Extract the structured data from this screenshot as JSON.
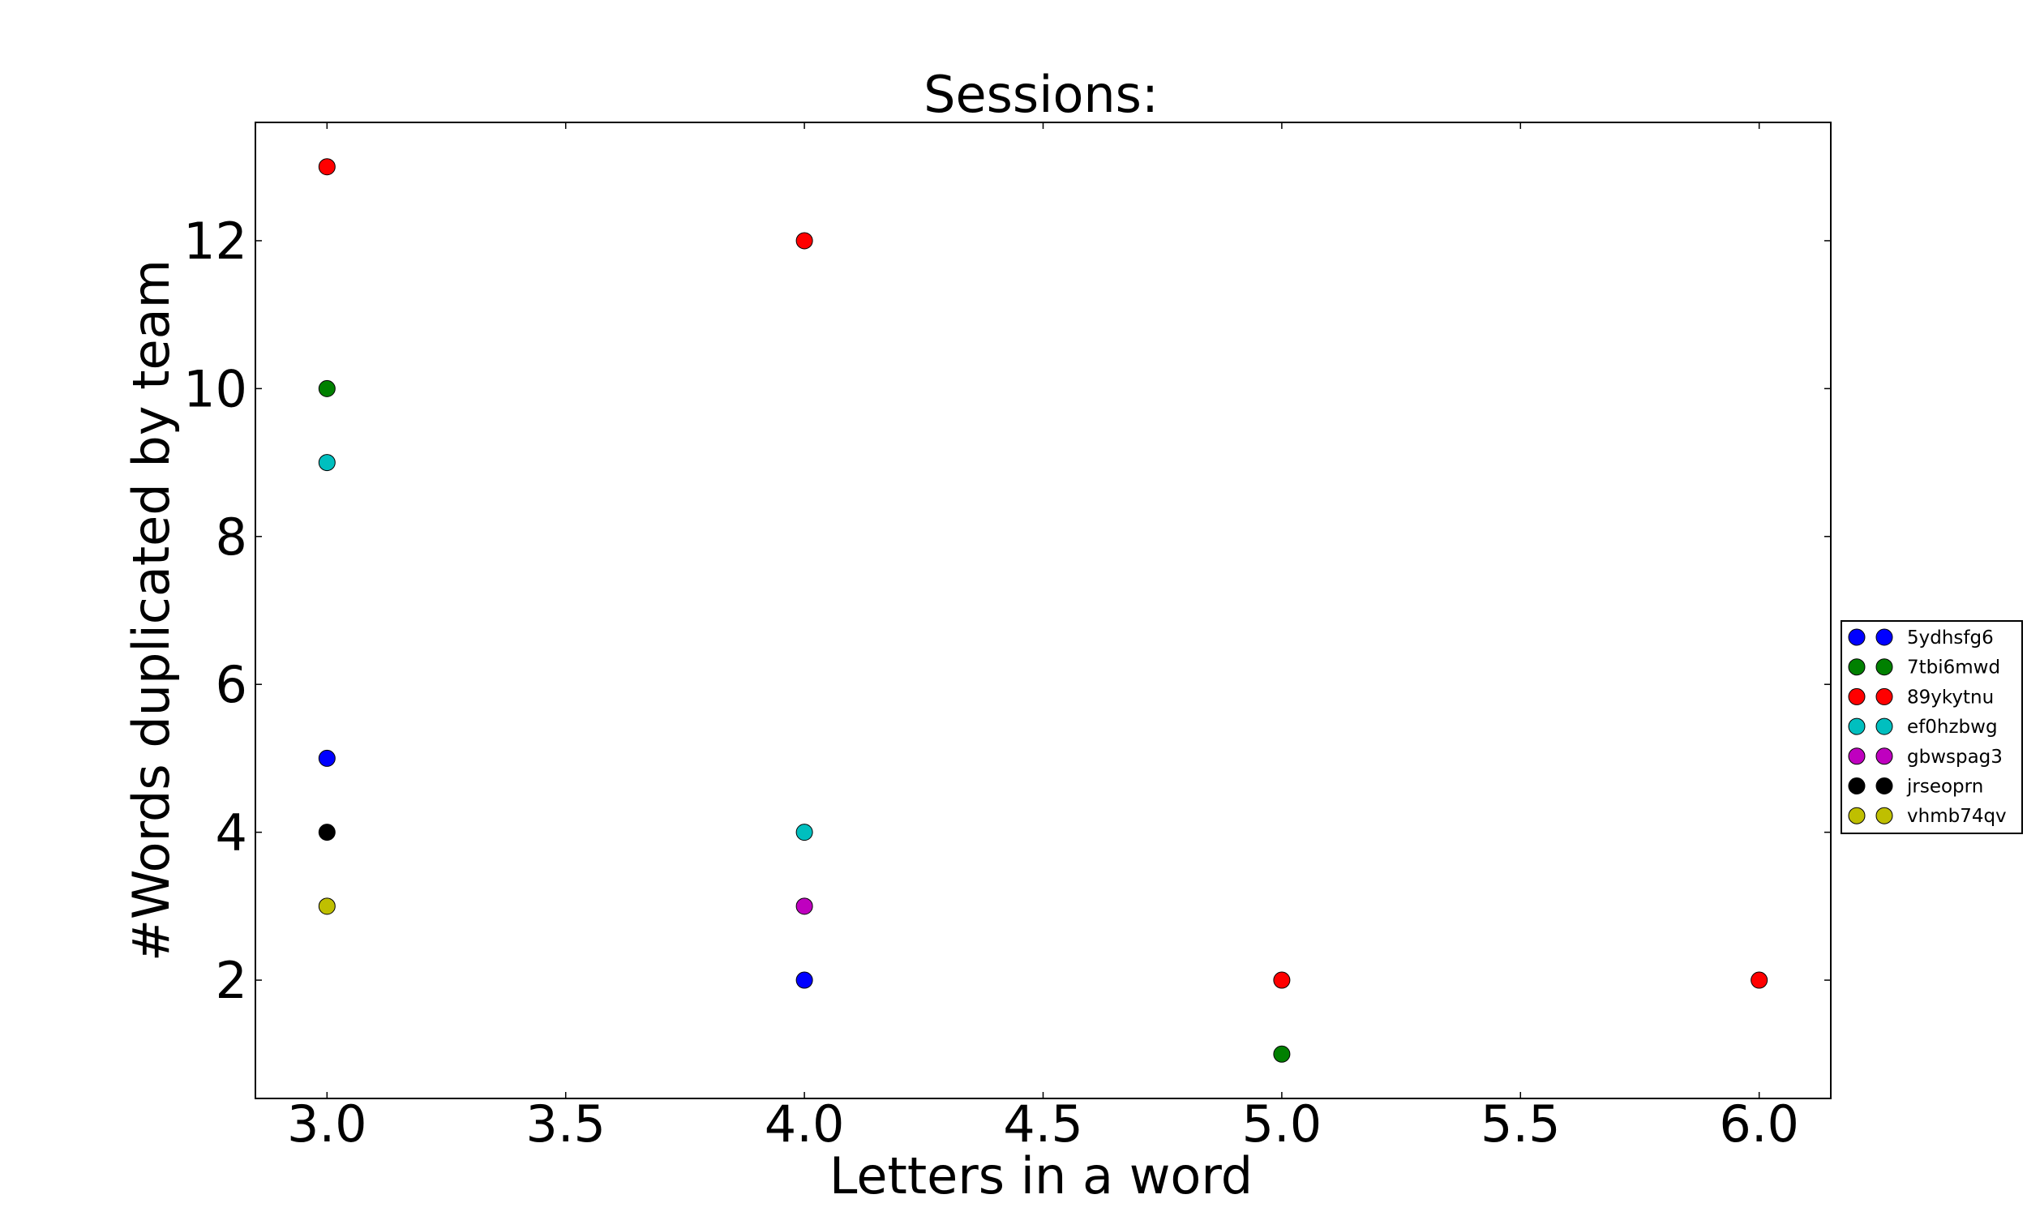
{
  "chart_data": {
    "type": "scatter",
    "title": "Sessions:",
    "xlabel": "Letters in a word",
    "ylabel": "#Words duplicated by team",
    "xlim": [
      2.85,
      6.15
    ],
    "ylim": [
      0.4,
      13.6
    ],
    "xticks": [
      3.0,
      3.5,
      4.0,
      4.5,
      5.0,
      5.5,
      6.0
    ],
    "xtick_labels": [
      "3.0",
      "3.5",
      "4.0",
      "4.5",
      "5.0",
      "5.5",
      "6.0"
    ],
    "yticks": [
      2,
      4,
      6,
      8,
      10,
      12
    ],
    "ytick_labels": [
      "2",
      "4",
      "6",
      "8",
      "10",
      "12"
    ],
    "grid": false,
    "legend_position": "right, outside plot area",
    "series": [
      {
        "name": "5ydhsfg6",
        "color": "#0000ff",
        "points": [
          [
            3,
            5
          ],
          [
            4,
            2
          ]
        ]
      },
      {
        "name": "7tbi6mwd",
        "color": "#008000",
        "points": [
          [
            3,
            10
          ],
          [
            5,
            1
          ]
        ]
      },
      {
        "name": "89ykytnu",
        "color": "#ff0000",
        "points": [
          [
            3,
            13
          ],
          [
            4,
            12
          ],
          [
            5,
            2
          ],
          [
            6,
            2
          ]
        ]
      },
      {
        "name": "ef0hzbwg",
        "color": "#00bfbf",
        "points": [
          [
            3,
            9
          ],
          [
            4,
            4
          ]
        ]
      },
      {
        "name": "gbwspag3",
        "color": "#bf00bf",
        "points": [
          [
            4,
            3
          ]
        ]
      },
      {
        "name": "jrseoprn",
        "color": "#000000",
        "points": [
          [
            3,
            4
          ]
        ]
      },
      {
        "name": "vhmb74qv",
        "color": "#bfbf00",
        "points": [
          [
            3,
            3
          ]
        ]
      }
    ]
  }
}
